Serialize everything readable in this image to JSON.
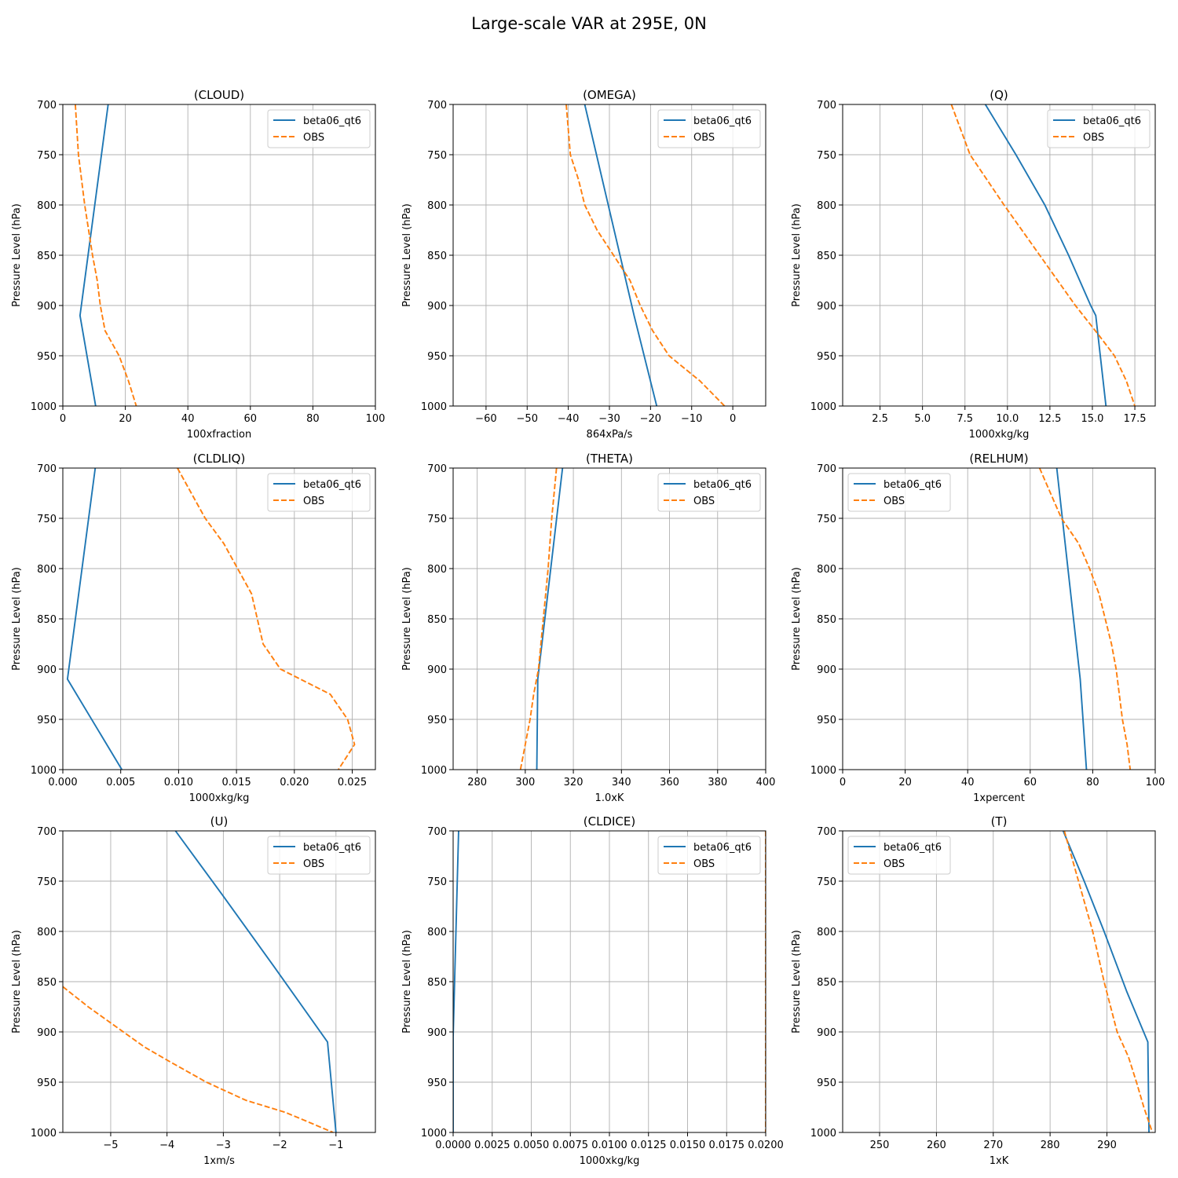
{
  "figure": {
    "title": "Large-scale VAR at 295E, 0N"
  },
  "colors": {
    "model": "#1f77b4",
    "obs": "#ff7f0e",
    "grid": "#b0b0b0",
    "axes": "#000000"
  },
  "chart_data": [
    {
      "type": "line",
      "title": "(CLOUD)",
      "xlabel": "100xfraction",
      "ylabel": "Pressure Level (hPa)",
      "xlim": [
        0,
        100
      ],
      "ylim": [
        1000,
        700
      ],
      "grid": true,
      "legend_loc": "upper right",
      "xticks": [
        0,
        20,
        40,
        60,
        80,
        100
      ],
      "xtick_labels": [
        "0",
        "20",
        "40",
        "60",
        "80",
        "100"
      ],
      "yticks": [
        700,
        750,
        800,
        850,
        900,
        950,
        1000
      ],
      "ytick_labels": [
        "700",
        "750",
        "800",
        "850",
        "900",
        "950",
        "1000"
      ],
      "series": [
        {
          "name": "beta06_qt6",
          "style": "solid",
          "points": [
            [
              14.5,
              700
            ],
            [
              5.5,
              910
            ],
            [
              10.5,
              1000
            ]
          ]
        },
        {
          "name": "OBS",
          "style": "dashed",
          "points": [
            [
              4,
              700
            ],
            [
              5,
              750
            ],
            [
              7,
              800
            ],
            [
              9.5,
              850
            ],
            [
              11,
              875
            ],
            [
              12,
              900
            ],
            [
              13.5,
              925
            ],
            [
              18,
              950
            ],
            [
              21,
              975
            ],
            [
              23.5,
              1000
            ]
          ]
        }
      ]
    },
    {
      "type": "line",
      "title": "(OMEGA)",
      "xlabel": "864xPa/s",
      "ylabel": "Pressure Level (hPa)",
      "xlim": [
        -68,
        8
      ],
      "ylim": [
        1000,
        700
      ],
      "grid": true,
      "legend_loc": "upper right",
      "xticks": [
        -60,
        -50,
        -40,
        -30,
        -20,
        -10,
        0
      ],
      "xtick_labels": [
        "−60",
        "−50",
        "−40",
        "−30",
        "−20",
        "−10",
        "0"
      ],
      "yticks": [
        700,
        750,
        800,
        850,
        900,
        950,
        1000
      ],
      "ytick_labels": [
        "700",
        "750",
        "800",
        "850",
        "900",
        "950",
        "1000"
      ],
      "series": [
        {
          "name": "beta06_qt6",
          "style": "solid",
          "points": [
            [
              -36,
              700
            ],
            [
              -24,
              910
            ],
            [
              -18.5,
              1000
            ]
          ]
        },
        {
          "name": "OBS",
          "style": "dashed",
          "points": [
            [
              -40.5,
              700
            ],
            [
              -40,
              725
            ],
            [
              -39.5,
              750
            ],
            [
              -37.5,
              775
            ],
            [
              -36,
              800
            ],
            [
              -33,
              825
            ],
            [
              -29,
              850
            ],
            [
              -25,
              875
            ],
            [
              -22.5,
              900
            ],
            [
              -19.5,
              925
            ],
            [
              -15.5,
              950
            ],
            [
              -8,
              975
            ],
            [
              -2,
              1000
            ]
          ]
        }
      ]
    },
    {
      "type": "line",
      "title": "(Q)",
      "xlabel": "1000xkg/kg",
      "ylabel": "Pressure Level (hPa)",
      "xlim": [
        0.3,
        18.7
      ],
      "ylim": [
        1000,
        700
      ],
      "grid": true,
      "legend_loc": "upper right",
      "xticks": [
        2.5,
        5.0,
        7.5,
        10.0,
        12.5,
        15.0,
        17.5
      ],
      "xtick_labels": [
        "2.5",
        "5.0",
        "7.5",
        "10.0",
        "12.5",
        "15.0",
        "17.5"
      ],
      "yticks": [
        700,
        750,
        800,
        850,
        900,
        950,
        1000
      ],
      "ytick_labels": [
        "700",
        "750",
        "800",
        "850",
        "900",
        "950",
        "1000"
      ],
      "series": [
        {
          "name": "beta06_qt6",
          "style": "solid",
          "points": [
            [
              8.7,
              700
            ],
            [
              10.5,
              750
            ],
            [
              12.2,
              800
            ],
            [
              13.6,
              850
            ],
            [
              14.9,
              900
            ],
            [
              15.2,
              910
            ],
            [
              15.8,
              1000
            ]
          ]
        },
        {
          "name": "OBS",
          "style": "dashed",
          "points": [
            [
              6.7,
              700
            ],
            [
              7.8,
              750
            ],
            [
              9.8,
              800
            ],
            [
              11.9,
              850
            ],
            [
              14.0,
              900
            ],
            [
              15.4,
              930
            ],
            [
              16.3,
              950
            ],
            [
              17.0,
              975
            ],
            [
              17.5,
              1000
            ]
          ]
        }
      ]
    },
    {
      "type": "line",
      "title": "(CLDLIQ)",
      "xlabel": "1000xkg/kg",
      "ylabel": "Pressure Level (hPa)",
      "xlim": [
        0.0,
        0.027
      ],
      "ylim": [
        1000,
        700
      ],
      "grid": true,
      "legend_loc": "upper right",
      "xticks": [
        0.0,
        0.005,
        0.01,
        0.015,
        0.02,
        0.025
      ],
      "xtick_labels": [
        "0.000",
        "0.005",
        "0.010",
        "0.015",
        "0.020",
        "0.025"
      ],
      "yticks": [
        700,
        750,
        800,
        850,
        900,
        950,
        1000
      ],
      "ytick_labels": [
        "700",
        "750",
        "800",
        "850",
        "900",
        "950",
        "1000"
      ],
      "series": [
        {
          "name": "beta06_qt6",
          "style": "solid",
          "points": [
            [
              0.0028,
              700
            ],
            [
              0.0004,
              910
            ],
            [
              0.0051,
              1000
            ]
          ]
        },
        {
          "name": "OBS",
          "style": "dashed",
          "points": [
            [
              0.0099,
              700
            ],
            [
              0.0123,
              750
            ],
            [
              0.0139,
              775
            ],
            [
              0.0151,
              800
            ],
            [
              0.0163,
              825
            ],
            [
              0.0173,
              875
            ],
            [
              0.0188,
              900
            ],
            [
              0.0231,
              925
            ],
            [
              0.0246,
              950
            ],
            [
              0.0252,
              975
            ],
            [
              0.0238,
              1000
            ]
          ]
        }
      ]
    },
    {
      "type": "line",
      "title": "(THETA)",
      "xlabel": "1.0xK",
      "ylabel": "Pressure Level (hPa)",
      "xlim": [
        270,
        400
      ],
      "ylim": [
        1000,
        700
      ],
      "grid": true,
      "legend_loc": "upper right",
      "xticks": [
        280,
        300,
        320,
        340,
        360,
        380,
        400
      ],
      "xtick_labels": [
        "280",
        "300",
        "320",
        "340",
        "360",
        "380",
        "400"
      ],
      "yticks": [
        700,
        750,
        800,
        850,
        900,
        950,
        1000
      ],
      "ytick_labels": [
        "700",
        "750",
        "800",
        "850",
        "900",
        "950",
        "1000"
      ],
      "series": [
        {
          "name": "beta06_qt6",
          "style": "solid",
          "points": [
            [
              315.5,
              700
            ],
            [
              305.2,
              910
            ],
            [
              304.8,
              1000
            ]
          ]
        },
        {
          "name": "OBS",
          "style": "dashed",
          "points": [
            [
              313,
              700
            ],
            [
              311,
              750
            ],
            [
              309.5,
              800
            ],
            [
              307.5,
              850
            ],
            [
              305.5,
              900
            ],
            [
              303.5,
              925
            ],
            [
              302,
              950
            ],
            [
              300,
              975
            ],
            [
              298,
              1000
            ]
          ]
        }
      ]
    },
    {
      "type": "line",
      "title": "(RELHUM)",
      "xlabel": "1xpercent",
      "ylabel": "Pressure Level (hPa)",
      "xlim": [
        0,
        100
      ],
      "ylim": [
        1000,
        700
      ],
      "grid": true,
      "legend_loc": "upper left",
      "xticks": [
        0,
        20,
        40,
        60,
        80,
        100
      ],
      "xtick_labels": [
        "0",
        "20",
        "40",
        "60",
        "80",
        "100"
      ],
      "yticks": [
        700,
        750,
        800,
        850,
        900,
        950,
        1000
      ],
      "ytick_labels": [
        "700",
        "750",
        "800",
        "850",
        "900",
        "950",
        "1000"
      ],
      "series": [
        {
          "name": "beta06_qt6",
          "style": "solid",
          "points": [
            [
              68.5,
              700
            ],
            [
              76,
              910
            ],
            [
              78,
              1000
            ]
          ]
        },
        {
          "name": "OBS",
          "style": "dashed",
          "points": [
            [
              63,
              700
            ],
            [
              66.5,
              725
            ],
            [
              70,
              750
            ],
            [
              75.5,
              775
            ],
            [
              79,
              800
            ],
            [
              82,
              825
            ],
            [
              84,
              850
            ],
            [
              86,
              875
            ],
            [
              87.5,
              900
            ],
            [
              88.5,
              925
            ],
            [
              89.5,
              950
            ],
            [
              91,
              975
            ],
            [
              92,
              1000
            ]
          ]
        }
      ]
    },
    {
      "type": "line",
      "title": "(U)",
      "xlabel": "1xm/s",
      "ylabel": "Pressure Level (hPa)",
      "xlim": [
        -5.85,
        -0.3
      ],
      "ylim": [
        1000,
        700
      ],
      "grid": true,
      "legend_loc": "upper right",
      "xticks": [
        -5,
        -4,
        -3,
        -2,
        -1
      ],
      "xtick_labels": [
        "−5",
        "−4",
        "−3",
        "−2",
        "−1"
      ],
      "yticks": [
        700,
        750,
        800,
        850,
        900,
        950,
        1000
      ],
      "ytick_labels": [
        "700",
        "750",
        "800",
        "850",
        "900",
        "950",
        "1000"
      ],
      "series": [
        {
          "name": "beta06_qt6",
          "style": "solid",
          "points": [
            [
              -3.85,
              700
            ],
            [
              -3.0,
              765
            ],
            [
              -2.1,
              835
            ],
            [
              -1.15,
              910
            ],
            [
              -1.0,
              1000
            ]
          ]
        },
        {
          "name": "OBS",
          "style": "dashed",
          "points": [
            [
              -5.85,
              855
            ],
            [
              -5.4,
              875
            ],
            [
              -4.9,
              895
            ],
            [
              -4.4,
              915
            ],
            [
              -4.0,
              928
            ],
            [
              -3.3,
              950
            ],
            [
              -2.6,
              968
            ],
            [
              -1.9,
              980
            ],
            [
              -1.6,
              987
            ],
            [
              -1.05,
              1000
            ]
          ]
        }
      ]
    },
    {
      "type": "line",
      "title": "(CLDICE)",
      "xlabel": "1000xkg/kg",
      "ylabel": "Pressure Level (hPa)",
      "xlim": [
        0.0,
        0.02
      ],
      "ylim": [
        1000,
        700
      ],
      "grid": true,
      "legend_loc": "upper right",
      "xticks": [
        0.0,
        0.0025,
        0.005,
        0.0075,
        0.01,
        0.0125,
        0.015,
        0.0175,
        0.02
      ],
      "xtick_labels": [
        "0.0000",
        "0.0025",
        "0.0050",
        "0.0075",
        "0.0100",
        "0.0125",
        "0.0150",
        "0.0175",
        "0.0200"
      ],
      "yticks": [
        700,
        750,
        800,
        850,
        900,
        950,
        1000
      ],
      "ytick_labels": [
        "700",
        "750",
        "800",
        "850",
        "900",
        "950",
        "1000"
      ],
      "series": [
        {
          "name": "beta06_qt6",
          "style": "solid",
          "points": [
            [
              0.00035,
              700
            ],
            [
              0.0,
              905
            ],
            [
              0.0,
              1000
            ]
          ]
        },
        {
          "name": "OBS",
          "style": "dashed",
          "points": [
            [
              0.02,
              700
            ],
            [
              0.02,
              1000
            ]
          ]
        }
      ]
    },
    {
      "type": "line",
      "title": "(T)",
      "xlabel": "1xK",
      "ylabel": "Pressure Level (hPa)",
      "xlim": [
        243.5,
        298.5
      ],
      "ylim": [
        1000,
        700
      ],
      "grid": true,
      "legend_loc": "upper left",
      "xticks": [
        250,
        260,
        270,
        280,
        290
      ],
      "xtick_labels": [
        "250",
        "260",
        "270",
        "280",
        "290"
      ],
      "yticks": [
        700,
        750,
        800,
        850,
        900,
        950,
        1000
      ],
      "ytick_labels": [
        "700",
        "750",
        "800",
        "850",
        "900",
        "950",
        "1000"
      ],
      "series": [
        {
          "name": "beta06_qt6",
          "style": "solid",
          "points": [
            [
              282.3,
              700
            ],
            [
              286,
              750
            ],
            [
              289.5,
              800
            ],
            [
              293.5,
              860
            ],
            [
              297.2,
              910
            ],
            [
              297.4,
              1000
            ]
          ]
        },
        {
          "name": "OBS",
          "style": "dashed",
          "points": [
            [
              282.5,
              700
            ],
            [
              285,
              750
            ],
            [
              287.5,
              800
            ],
            [
              289.5,
              850
            ],
            [
              291.8,
              900
            ],
            [
              293.8,
              925
            ],
            [
              295.2,
              950
            ],
            [
              296.5,
              975
            ],
            [
              298,
              1000
            ]
          ]
        }
      ]
    }
  ]
}
